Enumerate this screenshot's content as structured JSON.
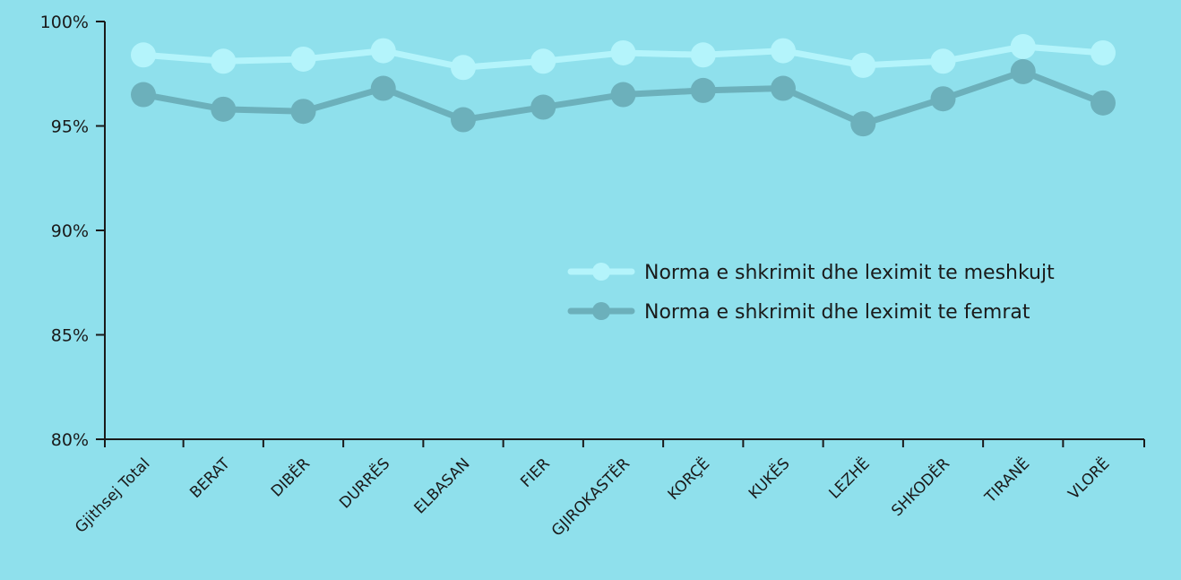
{
  "colors": {
    "background": "#8fe0ec",
    "axis": "#1a1a1a",
    "series_men": "#b4f4fb",
    "series_women": "#6cb0bb"
  },
  "chart_data": {
    "type": "line",
    "title": "",
    "xlabel": "",
    "ylabel": "",
    "ylim": [
      80,
      100
    ],
    "y_ticks": [
      {
        "value": 80,
        "label": "80%"
      },
      {
        "value": 85,
        "label": "85%"
      },
      {
        "value": 90,
        "label": "90%"
      },
      {
        "value": 95,
        "label": "95%"
      },
      {
        "value": 100,
        "label": "100%"
      }
    ],
    "categories": [
      "Gjithsej Total",
      "BERAT",
      "DIBËR",
      "DURRËS",
      "ELBASAN",
      "FIER",
      "GJIROKASTËR",
      "KORÇË",
      "KUKËS",
      "LEZHË",
      "SHKODËR",
      "TIRANË",
      "VLORË"
    ],
    "grid": false,
    "legend_position": "right-middle",
    "series": [
      {
        "name": "Norma e shkrimit dhe leximit te meshkujt",
        "color": "#b4f4fb",
        "values": [
          98.4,
          98.1,
          98.2,
          98.6,
          97.8,
          98.1,
          98.5,
          98.4,
          98.6,
          97.9,
          98.1,
          98.8,
          98.5
        ]
      },
      {
        "name": "Norma e shkrimit dhe leximit te femrat",
        "color": "#6cb0bb",
        "values": [
          96.5,
          95.8,
          95.7,
          96.8,
          95.3,
          95.9,
          96.5,
          96.7,
          96.8,
          95.1,
          96.3,
          97.6,
          96.1
        ]
      }
    ]
  }
}
